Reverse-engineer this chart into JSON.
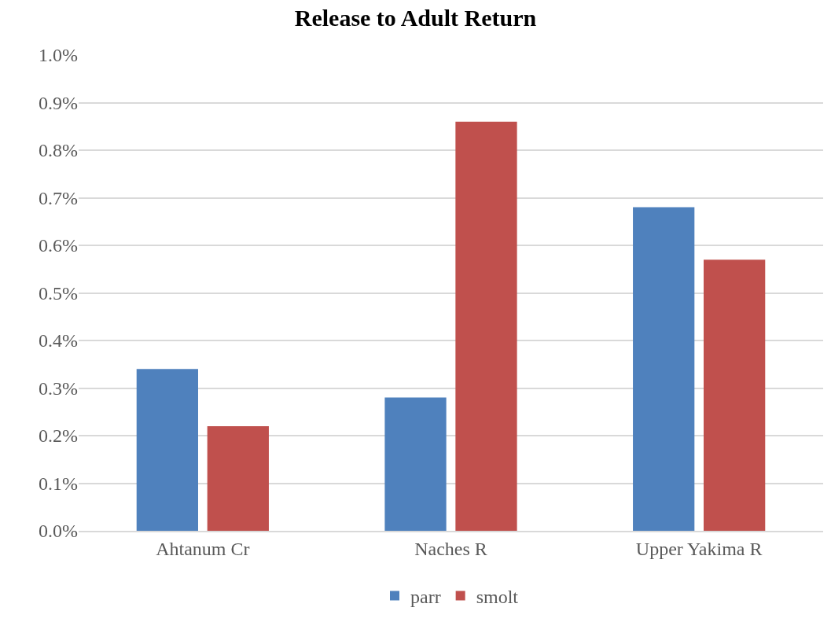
{
  "chart_data": {
    "type": "bar",
    "title": "Release to Adult Return",
    "categories": [
      "Ahtanum Cr",
      "Naches R",
      "Upper Yakima R"
    ],
    "series": [
      {
        "name": "parr",
        "color": "#4f81bd",
        "values": [
          0.34,
          0.28,
          0.68
        ]
      },
      {
        "name": "smolt",
        "color": "#c0504d",
        "values": [
          0.22,
          0.86,
          0.57
        ]
      }
    ],
    "ylim": [
      0,
      1.0
    ],
    "yticks": [
      {
        "value": 0,
        "label": "0.0%"
      },
      {
        "value": 0.1,
        "label": "0.1%"
      },
      {
        "value": 0.2,
        "label": "0.2%"
      },
      {
        "value": 0.3,
        "label": "0.3%"
      },
      {
        "value": 0.4,
        "label": "0.4%"
      },
      {
        "value": 0.5,
        "label": "0.5%"
      },
      {
        "value": 0.6,
        "label": "0.6%"
      },
      {
        "value": 0.7,
        "label": "0.7%"
      },
      {
        "value": 0.8,
        "label": "0.8%"
      },
      {
        "value": 0.9,
        "label": "0.9%"
      },
      {
        "value": 1.0,
        "label": "1.0%"
      }
    ],
    "grid": "y",
    "legend": "bottom"
  }
}
